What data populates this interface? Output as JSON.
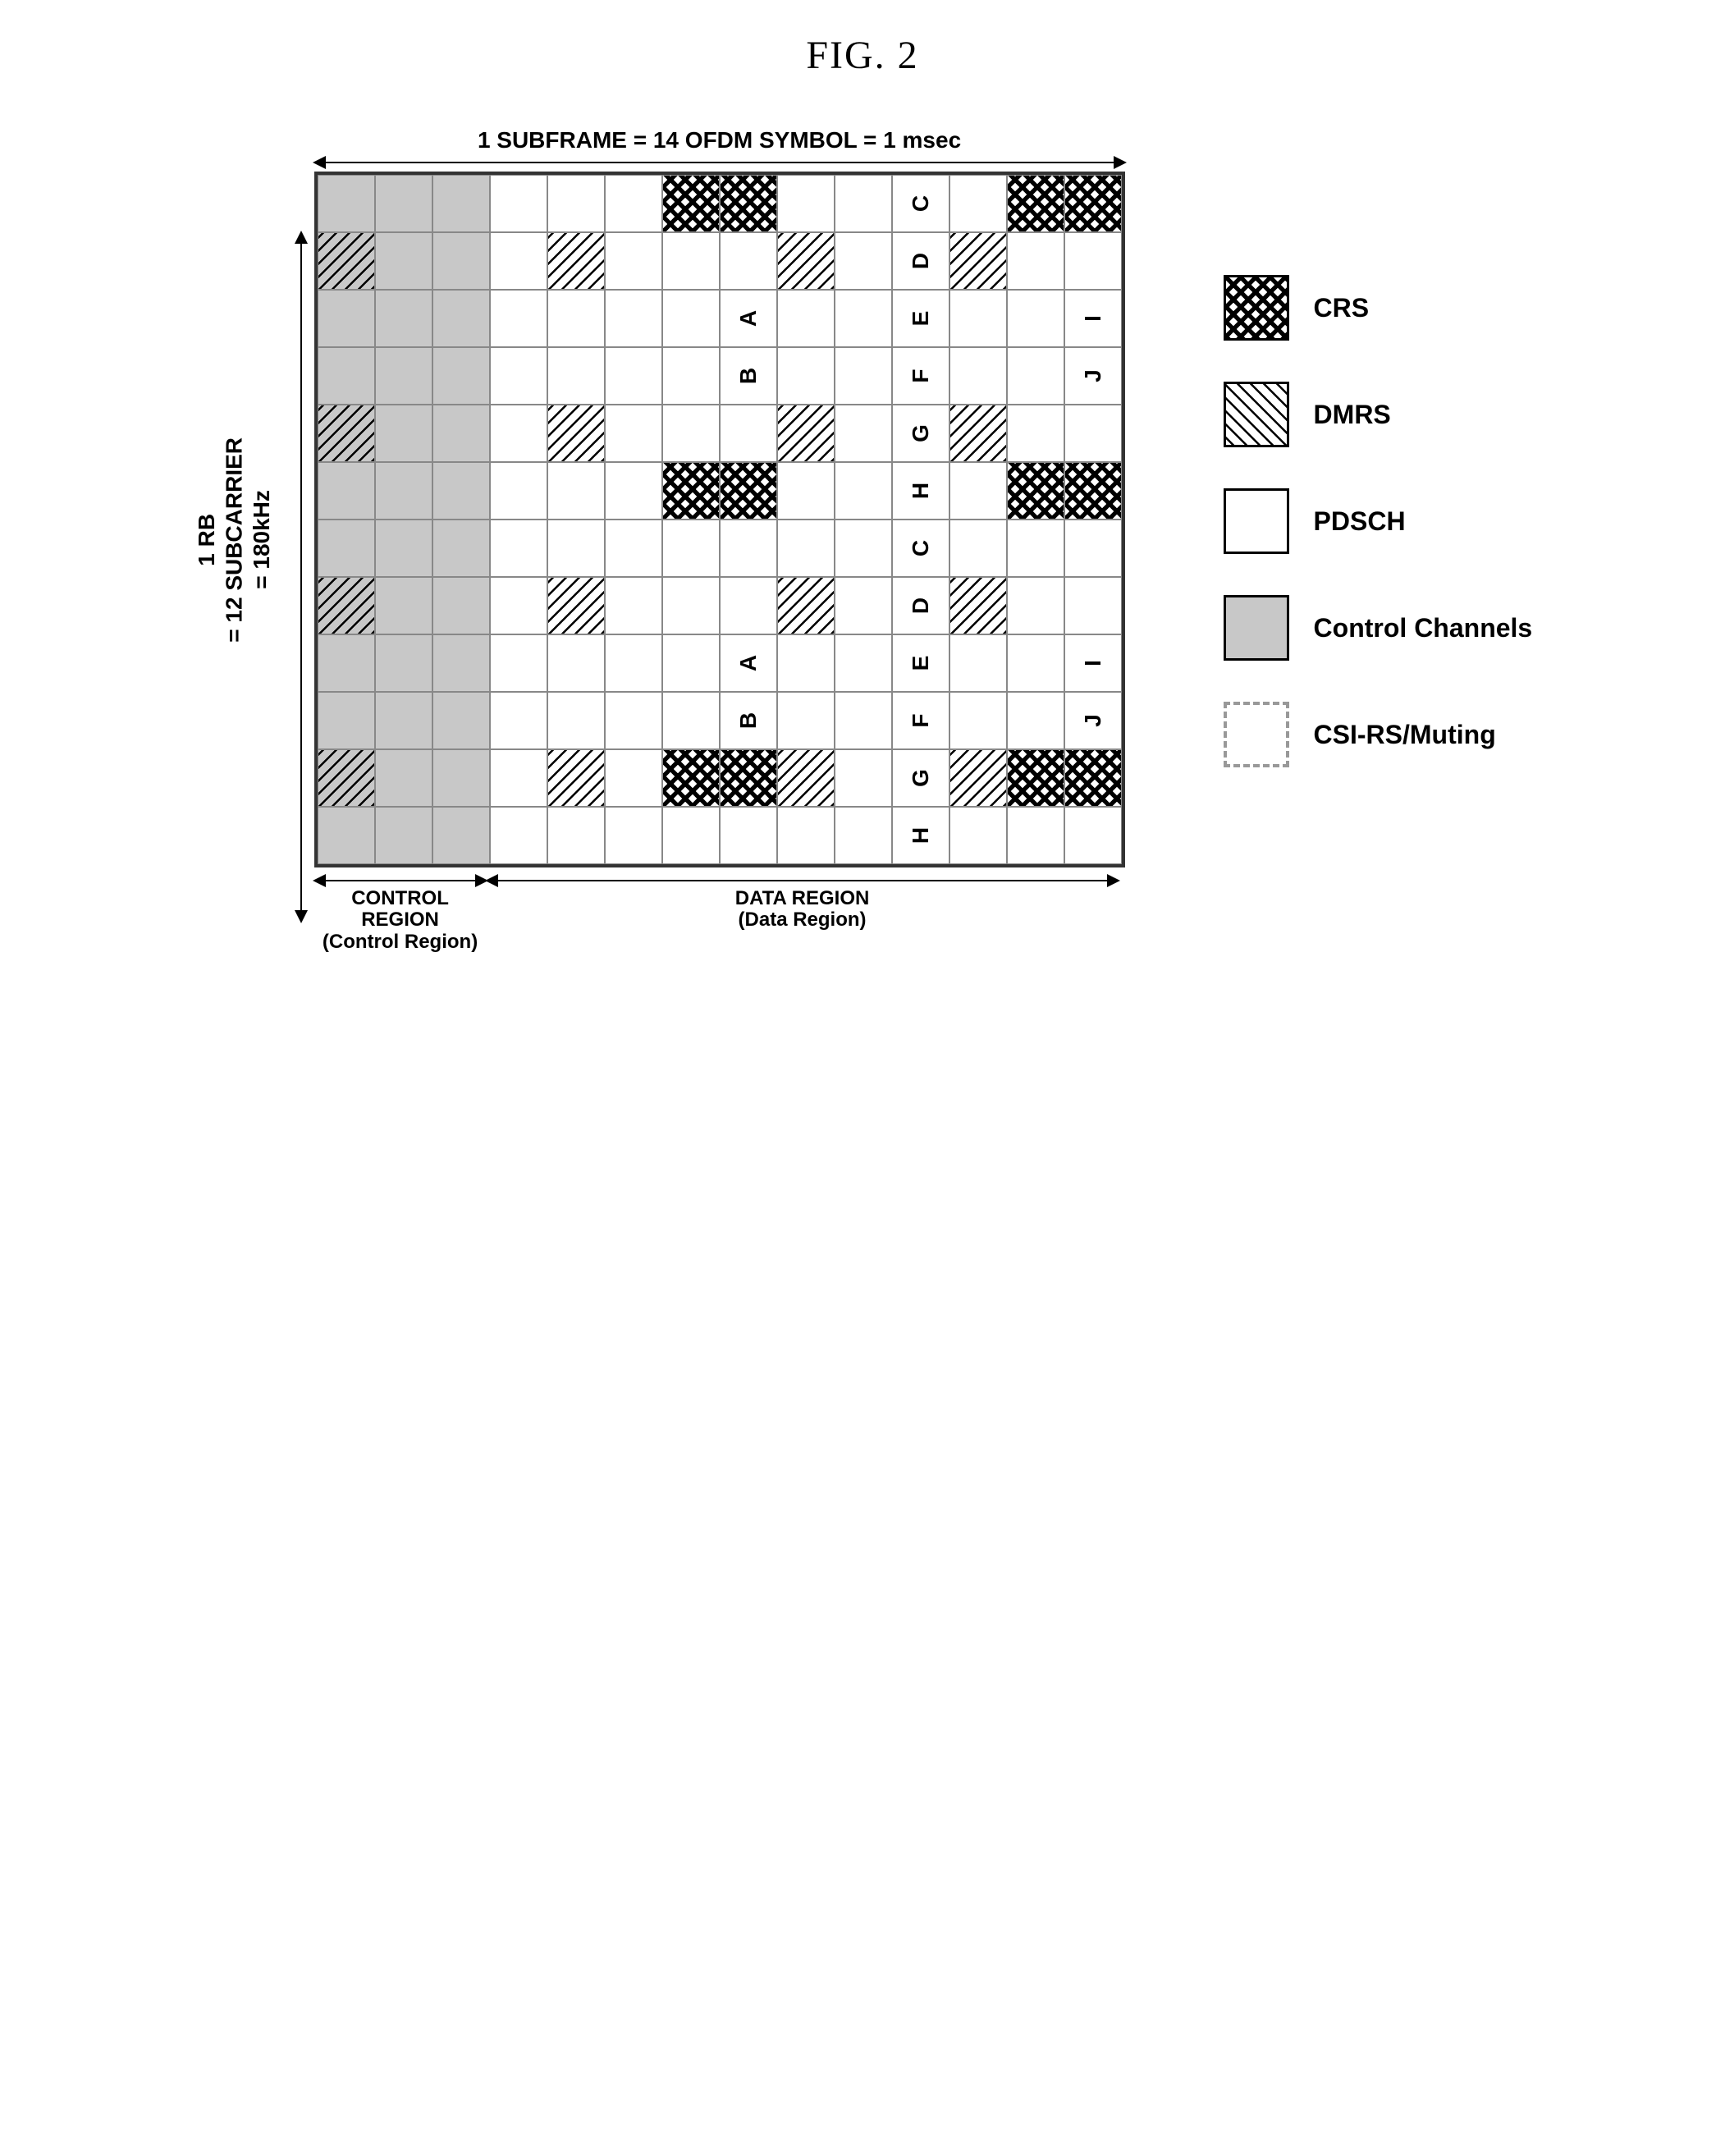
{
  "figure_title": "FIG. 2",
  "grid": {
    "rows": 12,
    "cols": 14,
    "cell_size": 70,
    "x_label": "1 SUBFRAME = 14 OFDM SYMBOL = 1 msec",
    "y_label": "1 RB\n= 12 SUBCARRIER\n= 180kHz",
    "control_cols": 3,
    "region_left_label": "CONTROL REGION",
    "region_left_sub": "(Control Region)",
    "region_right_label": "DATA REGION",
    "region_right_sub": "(Data Region)",
    "cells": {
      "crs": [
        [
          0,
          6
        ],
        [
          0,
          7
        ],
        [
          0,
          12
        ],
        [
          0,
          13
        ],
        [
          5,
          6
        ],
        [
          5,
          7
        ],
        [
          5,
          12
        ],
        [
          5,
          13
        ],
        [
          10,
          6
        ],
        [
          10,
          7
        ],
        [
          10,
          12
        ],
        [
          10,
          13
        ]
      ],
      "dmrs": [
        [
          1,
          0
        ],
        [
          1,
          4
        ],
        [
          1,
          8
        ],
        [
          1,
          11
        ],
        [
          4,
          0
        ],
        [
          4,
          4
        ],
        [
          4,
          8
        ],
        [
          4,
          11
        ],
        [
          7,
          0
        ],
        [
          7,
          4
        ],
        [
          7,
          8
        ],
        [
          7,
          11
        ],
        [
          10,
          0
        ],
        [
          10,
          4
        ],
        [
          10,
          8
        ],
        [
          10,
          11
        ]
      ],
      "letters": {
        "A": [
          [
            2,
            7
          ],
          [
            8,
            7
          ]
        ],
        "B": [
          [
            3,
            7
          ],
          [
            9,
            7
          ]
        ],
        "C": [
          [
            0,
            10
          ],
          [
            6,
            10
          ]
        ],
        "D": [
          [
            1,
            10
          ],
          [
            7,
            10
          ]
        ],
        "E": [
          [
            2,
            10
          ],
          [
            8,
            10
          ]
        ],
        "F": [
          [
            3,
            10
          ],
          [
            9,
            10
          ]
        ],
        "G": [
          [
            4,
            10
          ],
          [
            10,
            10
          ]
        ],
        "H": [
          [
            5,
            10
          ],
          [
            11,
            10
          ]
        ],
        "I": [
          [
            2,
            13
          ],
          [
            8,
            13
          ]
        ],
        "J": [
          [
            3,
            13
          ],
          [
            9,
            13
          ]
        ]
      }
    }
  },
  "legend": {
    "items": [
      {
        "type": "crs",
        "label": "CRS"
      },
      {
        "type": "dmrs",
        "label": "DMRS"
      },
      {
        "type": "pdsch",
        "label": "PDSCH"
      },
      {
        "type": "control",
        "label": "Control Channels"
      },
      {
        "type": "csi",
        "label": "CSI-RS/Muting"
      }
    ]
  },
  "colors": {
    "control_bg": "#c8c8c8",
    "grid_border": "#888888",
    "outer_border": "#333333"
  }
}
